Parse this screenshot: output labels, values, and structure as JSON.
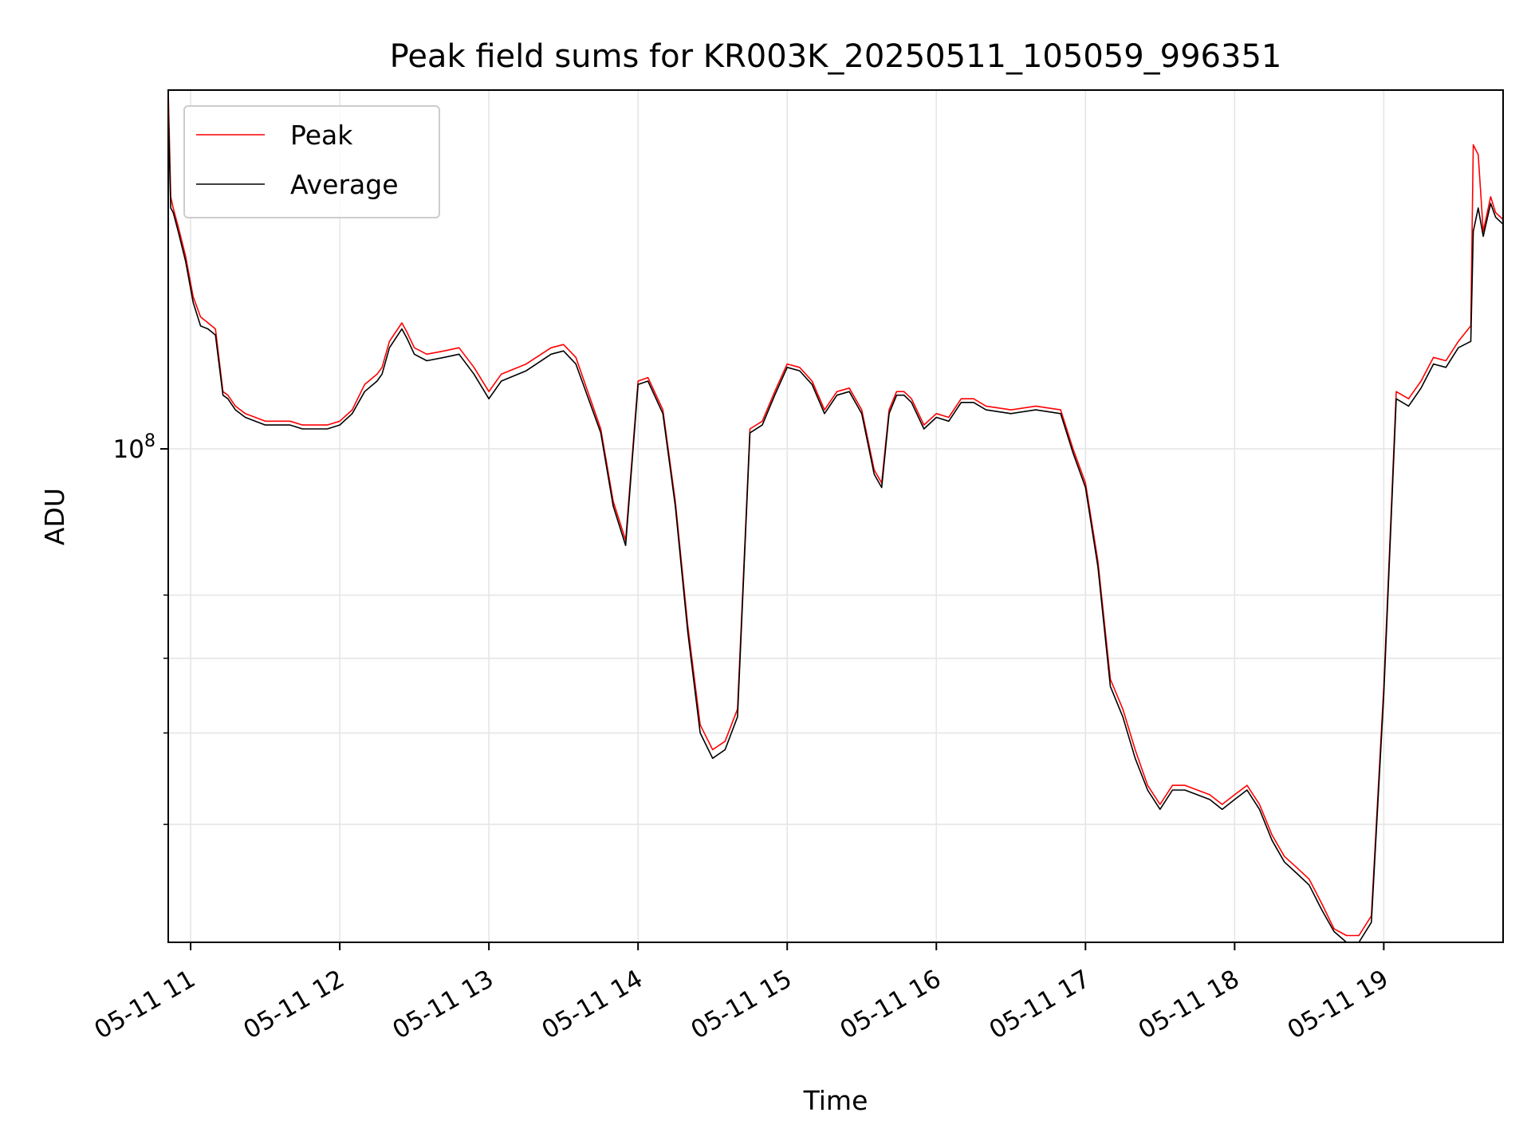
{
  "chart_data": {
    "type": "line",
    "title": "Peak field sums for KR003K_20250511_105059_996351",
    "xlabel": "Time",
    "ylabel": "ADU",
    "y_scale": "log",
    "ylim": [
      30000000,
      240000000
    ],
    "xlim": [
      "05-11 10:51",
      "05-11 19:48"
    ],
    "x_ticks": [
      "05-11 11",
      "05-11 12",
      "05-11 13",
      "05-11 14",
      "05-11 15",
      "05-11 16",
      "05-11 17",
      "05-11 18",
      "05-11 19"
    ],
    "x_tick_values": [
      "05-11 11:00",
      "05-11 12:00",
      "05-11 13:00",
      "05-11 14:00",
      "05-11 15:00",
      "05-11 16:00",
      "05-11 17:00",
      "05-11 18:00",
      "05-11 19:00"
    ],
    "y_major_tick": {
      "label_base": "10",
      "label_exp": "8",
      "value": 100000000
    },
    "y_minor_ticks": [
      40000000,
      50000000,
      60000000,
      70000000
    ],
    "grid": true,
    "legend_position": "top-left",
    "series": [
      {
        "name": "Peak",
        "color": "#ff0000",
        "x": [
          "05-11 10:51",
          "05-11 10:52",
          "05-11 10:53",
          "05-11 10:55",
          "05-11 10:58",
          "05-11 11:01",
          "05-11 11:04",
          "05-11 11:07",
          "05-11 11:10",
          "05-11 11:13",
          "05-11 11:15",
          "05-11 11:16",
          "05-11 11:18",
          "05-11 11:22",
          "05-11 11:30",
          "05-11 11:40",
          "05-11 11:45",
          "05-11 11:55",
          "05-11 12:00",
          "05-11 12:05",
          "05-11 12:10",
          "05-11 12:15",
          "05-11 12:17",
          "05-11 12:20",
          "05-11 12:25",
          "05-11 12:27",
          "05-11 12:30",
          "05-11 12:35",
          "05-11 12:42",
          "05-11 12:48",
          "05-11 12:54",
          "05-11 13:00",
          "05-11 13:05",
          "05-11 13:15",
          "05-11 13:25",
          "05-11 13:30",
          "05-11 13:35",
          "05-11 13:45",
          "05-11 13:50",
          "05-11 13:55",
          "05-11 14:00",
          "05-11 14:04",
          "05-11 14:10",
          "05-11 14:15",
          "05-11 14:20",
          "05-11 14:25",
          "05-11 14:30",
          "05-11 14:35",
          "05-11 14:40",
          "05-11 14:45",
          "05-11 14:50",
          "05-11 14:55",
          "05-11 15:00",
          "05-11 15:05",
          "05-11 15:10",
          "05-11 15:15",
          "05-11 15:20",
          "05-11 15:25",
          "05-11 15:30",
          "05-11 15:35",
          "05-11 15:38",
          "05-11 15:41",
          "05-11 15:44",
          "05-11 15:47",
          "05-11 15:50",
          "05-11 15:55",
          "05-11 16:00",
          "05-11 16:05",
          "05-11 16:10",
          "05-11 16:15",
          "05-11 16:20",
          "05-11 16:30",
          "05-11 16:40",
          "05-11 16:50",
          "05-11 16:55",
          "05-11 17:00",
          "05-11 17:05",
          "05-11 17:10",
          "05-11 17:15",
          "05-11 17:20",
          "05-11 17:25",
          "05-11 17:30",
          "05-11 17:35",
          "05-11 17:40",
          "05-11 17:50",
          "05-11 17:55",
          "05-11 18:00",
          "05-11 18:05",
          "05-11 18:10",
          "05-11 18:15",
          "05-11 18:20",
          "05-11 18:25",
          "05-11 18:30",
          "05-11 18:35",
          "05-11 18:40",
          "05-11 18:45",
          "05-11 18:50",
          "05-11 18:55",
          "05-11 19:00",
          "05-11 19:05",
          "05-11 19:10",
          "05-11 19:15",
          "05-11 19:20",
          "05-11 19:25",
          "05-11 19:30",
          "05-11 19:35",
          "05-11 19:36",
          "05-11 19:38",
          "05-11 19:40",
          "05-11 19:43",
          "05-11 19:45",
          "05-11 19:48"
        ],
        "y": [
          240000000,
          185000000,
          180000000,
          172000000,
          160000000,
          145000000,
          138000000,
          136000000,
          134000000,
          115000000,
          114000000,
          113000000,
          111000000,
          109000000,
          107000000,
          107000000,
          106000000,
          106000000,
          107000000,
          110000000,
          117000000,
          120000000,
          122000000,
          130000000,
          136000000,
          133000000,
          128000000,
          126000000,
          127000000,
          128000000,
          122000000,
          115000000,
          120000000,
          123000000,
          128000000,
          129000000,
          125000000,
          105000000,
          88000000,
          80000000,
          118000000,
          119000000,
          110000000,
          88000000,
          65000000,
          51000000,
          48000000,
          49000000,
          53000000,
          105000000,
          107000000,
          115000000,
          123000000,
          122000000,
          118000000,
          110000000,
          115000000,
          116000000,
          110000000,
          95000000,
          92000000,
          110000000,
          115000000,
          115000000,
          113000000,
          106000000,
          109000000,
          108000000,
          113000000,
          113000000,
          111000000,
          110000000,
          111000000,
          110000000,
          100000000,
          92000000,
          76000000,
          57000000,
          53000000,
          48000000,
          44000000,
          42000000,
          44000000,
          44000000,
          43000000,
          42000000,
          43000000,
          44000000,
          42000000,
          39000000,
          37000000,
          36000000,
          35000000,
          33000000,
          31000000,
          30500000,
          30500000,
          32000000,
          56000000,
          115000000,
          113000000,
          118000000,
          125000000,
          124000000,
          130000000,
          135000000,
          210000000,
          205000000,
          170000000,
          185000000,
          178000000,
          175000000
        ]
      },
      {
        "name": "Average",
        "color": "#000000",
        "x": [
          "05-11 10:51",
          "05-11 10:52",
          "05-11 10:53",
          "05-11 10:55",
          "05-11 10:58",
          "05-11 11:01",
          "05-11 11:04",
          "05-11 11:07",
          "05-11 11:10",
          "05-11 11:13",
          "05-11 11:15",
          "05-11 11:16",
          "05-11 11:18",
          "05-11 11:22",
          "05-11 11:30",
          "05-11 11:40",
          "05-11 11:45",
          "05-11 11:55",
          "05-11 12:00",
          "05-11 12:05",
          "05-11 12:10",
          "05-11 12:15",
          "05-11 12:17",
          "05-11 12:20",
          "05-11 12:25",
          "05-11 12:27",
          "05-11 12:30",
          "05-11 12:35",
          "05-11 12:42",
          "05-11 12:48",
          "05-11 12:54",
          "05-11 13:00",
          "05-11 13:05",
          "05-11 13:15",
          "05-11 13:25",
          "05-11 13:30",
          "05-11 13:35",
          "05-11 13:45",
          "05-11 13:50",
          "05-11 13:55",
          "05-11 14:00",
          "05-11 14:04",
          "05-11 14:10",
          "05-11 14:15",
          "05-11 14:20",
          "05-11 14:25",
          "05-11 14:30",
          "05-11 14:35",
          "05-11 14:40",
          "05-11 14:45",
          "05-11 14:50",
          "05-11 14:55",
          "05-11 15:00",
          "05-11 15:05",
          "05-11 15:10",
          "05-11 15:15",
          "05-11 15:20",
          "05-11 15:25",
          "05-11 15:30",
          "05-11 15:35",
          "05-11 15:38",
          "05-11 15:41",
          "05-11 15:44",
          "05-11 15:47",
          "05-11 15:50",
          "05-11 15:55",
          "05-11 16:00",
          "05-11 16:05",
          "05-11 16:10",
          "05-11 16:15",
          "05-11 16:20",
          "05-11 16:30",
          "05-11 16:40",
          "05-11 16:50",
          "05-11 16:55",
          "05-11 17:00",
          "05-11 17:05",
          "05-11 17:10",
          "05-11 17:15",
          "05-11 17:20",
          "05-11 17:25",
          "05-11 17:30",
          "05-11 17:35",
          "05-11 17:40",
          "05-11 17:50",
          "05-11 17:55",
          "05-11 18:00",
          "05-11 18:05",
          "05-11 18:10",
          "05-11 18:15",
          "05-11 18:20",
          "05-11 18:25",
          "05-11 18:30",
          "05-11 18:35",
          "05-11 18:40",
          "05-11 18:45",
          "05-11 18:50",
          "05-11 18:55",
          "05-11 19:00",
          "05-11 19:05",
          "05-11 19:10",
          "05-11 19:15",
          "05-11 19:20",
          "05-11 19:25",
          "05-11 19:30",
          "05-11 19:35",
          "05-11 19:36",
          "05-11 19:38",
          "05-11 19:40",
          "05-11 19:43",
          "05-11 19:45",
          "05-11 19:48"
        ],
        "y": [
          230000000,
          180000000,
          178000000,
          170000000,
          158000000,
          143000000,
          135000000,
          134000000,
          132000000,
          114000000,
          113000000,
          112000000,
          110000000,
          108000000,
          106000000,
          106000000,
          105000000,
          105000000,
          106000000,
          109000000,
          115000000,
          118000000,
          120000000,
          128000000,
          134000000,
          131000000,
          126000000,
          124000000,
          125000000,
          126000000,
          120000000,
          113000000,
          118000000,
          121000000,
          126000000,
          127000000,
          123000000,
          104000000,
          87000000,
          79000000,
          117000000,
          118000000,
          109000000,
          87000000,
          64000000,
          50000000,
          47000000,
          48000000,
          52000000,
          104000000,
          106000000,
          114000000,
          122000000,
          121000000,
          117000000,
          109000000,
          114000000,
          115000000,
          109000000,
          94000000,
          91000000,
          109000000,
          114000000,
          114000000,
          112000000,
          105000000,
          108000000,
          107000000,
          112000000,
          112000000,
          110000000,
          109000000,
          110000000,
          109000000,
          99000000,
          91000000,
          75000000,
          56000000,
          52000000,
          47000000,
          43500000,
          41500000,
          43500000,
          43500000,
          42500000,
          41500000,
          42500000,
          43500000,
          41500000,
          38500000,
          36500000,
          35500000,
          34500000,
          32500000,
          30800000,
          30000000,
          30000000,
          31500000,
          55000000,
          113000000,
          111000000,
          116000000,
          123000000,
          122000000,
          128000000,
          130000000,
          170000000,
          180000000,
          168000000,
          182000000,
          176000000,
          173000000
        ]
      }
    ]
  }
}
